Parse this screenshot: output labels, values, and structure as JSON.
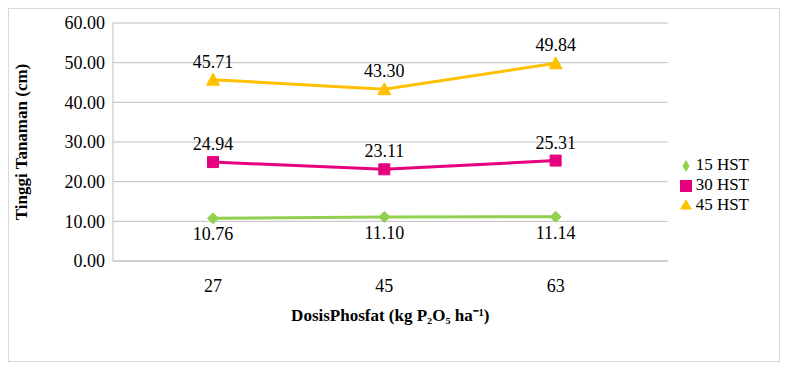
{
  "chart_data": {
    "type": "line",
    "x_label": "DosisPhosfat (kg P₂O₅ ha⁻¹)",
    "y_label": "Tinggi Tanaman (cm)",
    "categories": [
      "27",
      "45",
      "63"
    ],
    "series": [
      {
        "name": "15 HST",
        "color": "#92d050",
        "marker": "diamond",
        "values": [
          10.76,
          11.1,
          11.14
        ],
        "value_labels": [
          "10.76",
          "11.10",
          "11.14"
        ]
      },
      {
        "name": "30 HST",
        "color": "#e6007e",
        "marker": "square",
        "values": [
          24.94,
          23.11,
          25.31
        ],
        "value_labels": [
          "24.94",
          "23.11",
          "25.31"
        ]
      },
      {
        "name": "45 HST",
        "color": "#ffc000",
        "marker": "triangle",
        "values": [
          45.71,
          43.3,
          49.84
        ],
        "value_labels": [
          "45.71",
          "43.30",
          "49.84"
        ]
      }
    ],
    "ylim": [
      0,
      60
    ],
    "yticks": [
      {
        "value": 0,
        "label": "0.00"
      },
      {
        "value": 10,
        "label": "10.00"
      },
      {
        "value": 20,
        "label": "20.00"
      },
      {
        "value": 30,
        "label": "30.00"
      },
      {
        "value": 40,
        "label": "40.00"
      },
      {
        "value": 50,
        "label": "50.00"
      },
      {
        "value": 60,
        "label": "60.00"
      }
    ],
    "grid": true,
    "legend": "right",
    "data_labels": true
  }
}
